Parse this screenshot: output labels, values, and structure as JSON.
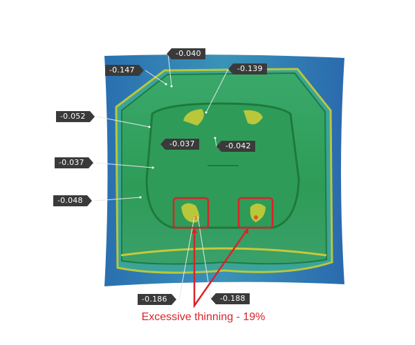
{
  "labels": {
    "l1": "-0.040",
    "l2": "-0.147",
    "l3": "-0.139",
    "l4": "-0.052",
    "l5": "-0.037",
    "l6": "-0.042",
    "l7": "-0.037",
    "l8": "-0.048",
    "l9": "-0.186",
    "l10": "-0.188"
  },
  "caption": "Excessive thinning - 19%",
  "colors": {
    "panel": "#2f7fb8",
    "part": "#2fa05a",
    "highlight": "#d9232a",
    "label_bg": "#3a3a3a"
  }
}
